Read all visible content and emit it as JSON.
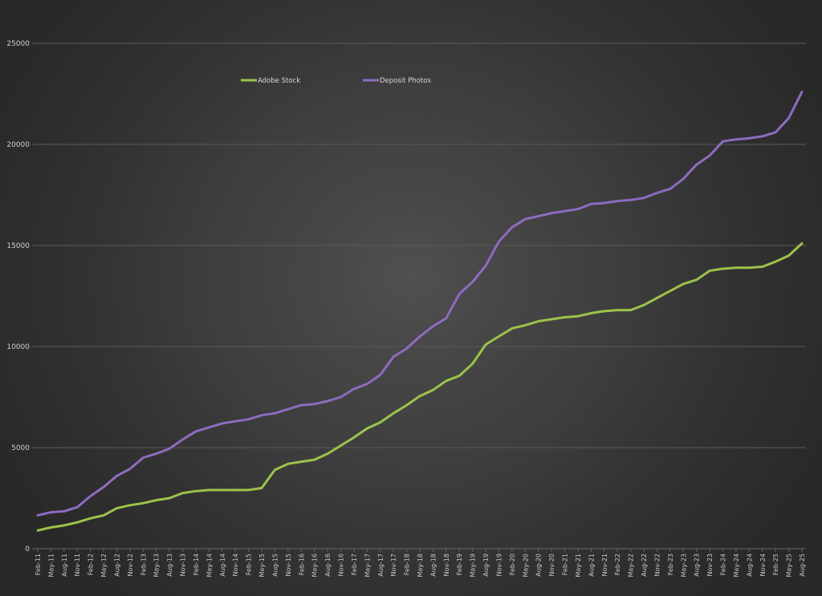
{
  "chart_data": {
    "type": "line",
    "title": "",
    "xlabel": "",
    "ylabel": "",
    "ylim": [
      0,
      25000
    ],
    "yticks": [
      0,
      5000,
      10000,
      15000,
      20000,
      25000
    ],
    "grid": "horizontal",
    "legend_position": "top-inside",
    "categories": [
      "Feb-11",
      "May-11",
      "Aug-11",
      "Nov-11",
      "Feb-12",
      "May-12",
      "Aug-12",
      "Nov-12",
      "Feb-13",
      "May-13",
      "Aug-13",
      "Nov-13",
      "Feb-14",
      "May-14",
      "Aug-14",
      "Nov-14",
      "Feb-15",
      "May-15",
      "Aug-15",
      "Nov-15",
      "Feb-16",
      "May-16",
      "Aug-16",
      "Nov-16",
      "Feb-17",
      "May-17",
      "Aug-17",
      "Nov-17",
      "Feb-18",
      "May-18",
      "Aug-18",
      "Nov-18",
      "Feb-19",
      "May-19",
      "Aug-19",
      "Nov-19",
      "Feb-20",
      "May-20",
      "Aug-20",
      "Nov-20",
      "Feb-21",
      "May-21",
      "Aug-21",
      "Nov-21",
      "Feb-22",
      "May-22",
      "Aug-22",
      "Nov-22",
      "Feb-23",
      "May-23",
      "Aug-23",
      "Nov-23",
      "Feb-24",
      "May-24",
      "Aug-24",
      "Nov-24",
      "Feb-25",
      "May-25",
      "Aug-25"
    ],
    "series": [
      {
        "name": "Adobe Stock",
        "color": "#9bc34a",
        "values": [
          900,
          1050,
          1150,
          1300,
          1500,
          1650,
          2000,
          2150,
          2250,
          2400,
          2500,
          2750,
          2850,
          2900,
          2900,
          2900,
          2900,
          3000,
          3900,
          4200,
          4300,
          4400,
          4700,
          5100,
          5500,
          5950,
          6250,
          6700,
          7100,
          7550,
          7850,
          8300,
          8550,
          9150,
          10100,
          10500,
          10900,
          11050,
          11250,
          11350,
          11450,
          11500,
          11650,
          11750,
          11800,
          11800,
          12050,
          12400,
          12750,
          13100,
          13300,
          13750,
          13850,
          13900,
          13900,
          13950,
          14200,
          14500,
          15100
        ]
      },
      {
        "name": "Deposit Photos",
        "color": "#8e6bbf",
        "values": [
          1650,
          1800,
          1850,
          2050,
          2600,
          3050,
          3600,
          3950,
          4500,
          4700,
          4950,
          5400,
          5800,
          6000,
          6200,
          6300,
          6400,
          6600,
          6700,
          6900,
          7100,
          7150,
          7300,
          7500,
          7900,
          8150,
          8600,
          9500,
          9900,
          10500,
          11000,
          11400,
          12600,
          13200,
          14000,
          15200,
          15900,
          16300,
          16450,
          16600,
          16700,
          16800,
          17050,
          17100,
          17200,
          17250,
          17350,
          17600,
          17800,
          18300,
          19000,
          19450,
          20150,
          20250,
          20300,
          20400,
          20600,
          21300,
          22600
        ]
      }
    ]
  },
  "legend": {
    "items": [
      {
        "label": "Adobe Stock",
        "color": "#9bc34a"
      },
      {
        "label": "Deposit Photos",
        "color": "#8e6bbf"
      }
    ]
  },
  "y_axis": {
    "labels": [
      "0",
      "5000",
      "10000",
      "15000",
      "20000",
      "25000"
    ]
  }
}
